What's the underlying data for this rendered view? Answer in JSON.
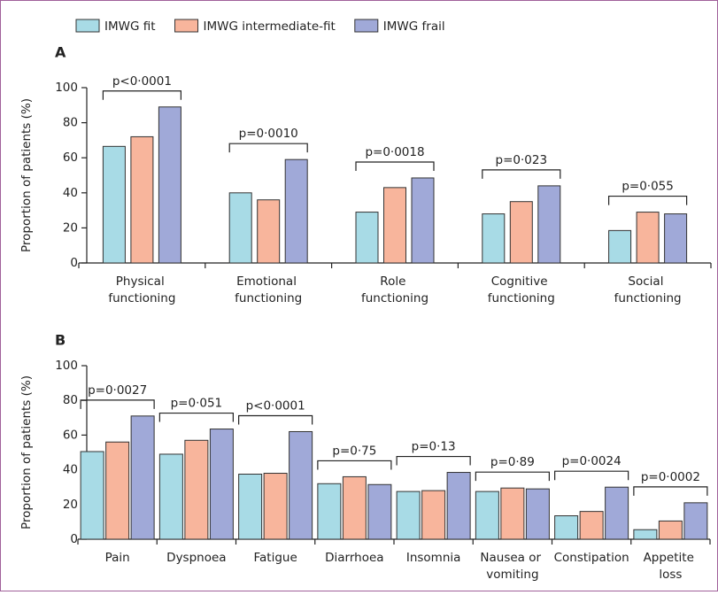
{
  "chart_data": [
    {
      "type": "bar",
      "label": "A",
      "y_label": "Proportion of patients (%)",
      "categories": [
        "Physical functioning",
        "Emotional functioning",
        "Role functioning",
        "Cognitive functioning",
        "Social functioning"
      ],
      "series": [
        {
          "name": "IMWG fit",
          "color": "#a8dbe6",
          "values": [
            66.5,
            40,
            29,
            28,
            18.5
          ]
        },
        {
          "name": "IMWG intermediate-fit",
          "color": "#f8b59c",
          "values": [
            72,
            36,
            43,
            35,
            29
          ]
        },
        {
          "name": "IMWG frail",
          "color": "#a0a9d8",
          "values": [
            89,
            59,
            48.5,
            44,
            28
          ]
        }
      ],
      "annotations": [
        "p<0·0001",
        "p=0·0010",
        "p=0·0018",
        "p=0·023",
        "p=0·055"
      ],
      "ylim": [
        0,
        100
      ],
      "yticks": [
        0,
        20,
        40,
        60,
        80,
        100
      ]
    },
    {
      "type": "bar",
      "label": "B",
      "y_label": "Proportion of patients (%)",
      "categories": [
        "Pain",
        "Dyspnoea",
        "Fatigue",
        "Diarrhoea",
        "Insomnia",
        "Nausea or vomiting",
        "Constipation",
        "Appetite loss"
      ],
      "series": [
        {
          "color": "#a8dbe6",
          "values": [
            50.5,
            49,
            37.5,
            32,
            27.5,
            27.5,
            13.5,
            5.5
          ]
        },
        {
          "color": "#f8b59c",
          "values": [
            56,
            57,
            38,
            36,
            28,
            29.5,
            16,
            10.5
          ]
        },
        {
          "color": "#a0a9d8",
          "values": [
            71,
            63.5,
            62,
            31.5,
            38.5,
            29,
            30,
            21
          ]
        }
      ],
      "annotations": [
        "p=0·0027",
        "p=0·051",
        "p<0·0001",
        "p=0·75",
        "p=0·13",
        "p=0·89",
        "p=0·0024",
        "p=0·0002"
      ],
      "ylim": [
        0,
        100
      ],
      "yticks": [
        0,
        20,
        40,
        60,
        80,
        100
      ]
    }
  ]
}
